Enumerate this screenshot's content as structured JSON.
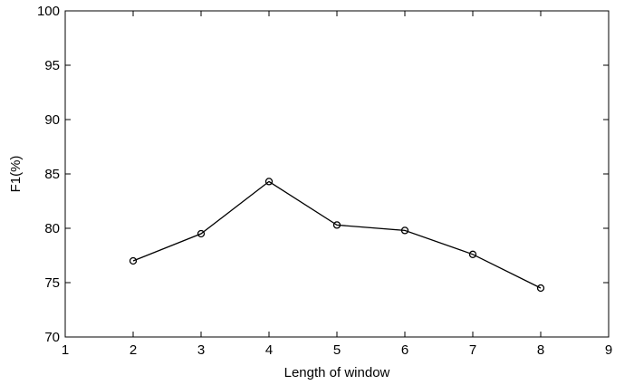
{
  "chart_data": {
    "type": "line",
    "title": "",
    "xlabel": "Length of window",
    "ylabel": "F1(%)",
    "xlim": [
      1,
      9
    ],
    "ylim": [
      70,
      100
    ],
    "xticks": [
      "1",
      "2",
      "3",
      "4",
      "5",
      "6",
      "7",
      "8",
      "9"
    ],
    "yticks": [
      "70",
      "75",
      "80",
      "85",
      "90",
      "95",
      "100"
    ],
    "grid": false,
    "legend": "none",
    "series": [
      {
        "x": [
          2,
          3,
          4,
          5,
          6,
          7,
          8
        ],
        "y": [
          77.0,
          79.5,
          84.3,
          80.3,
          79.8,
          77.6,
          74.5
        ],
        "color": "#000000",
        "marker": "circle"
      }
    ]
  }
}
